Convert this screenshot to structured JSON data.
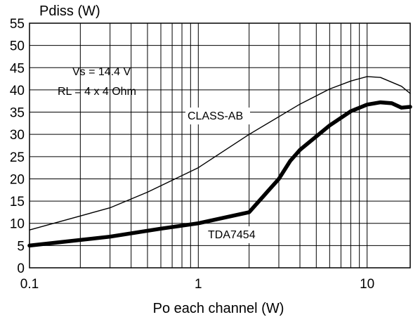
{
  "chart_data": {
    "type": "line",
    "x_scale": "log",
    "xlim": [
      0.1,
      18
    ],
    "ylim": [
      0,
      55
    ],
    "xlabel": "Po each channel (W)",
    "ylabel": "Pdiss (W)",
    "x_ticks": [
      {
        "value": 0.1,
        "label": "0.1"
      },
      {
        "value": 1,
        "label": "1"
      },
      {
        "value": 10,
        "label": "10"
      }
    ],
    "y_ticks": [
      {
        "value": 0,
        "label": "0"
      },
      {
        "value": 5,
        "label": "5"
      },
      {
        "value": 10,
        "label": "10"
      },
      {
        "value": 15,
        "label": "15"
      },
      {
        "value": 20,
        "label": "20"
      },
      {
        "value": 25,
        "label": "25"
      },
      {
        "value": 30,
        "label": "30"
      },
      {
        "value": 35,
        "label": "35"
      },
      {
        "value": 40,
        "label": "40"
      },
      {
        "value": 45,
        "label": "45"
      },
      {
        "value": 50,
        "label": "50"
      },
      {
        "value": 55,
        "label": "55"
      }
    ],
    "grid": true,
    "annotations": [
      "Vs = 14.4 V",
      "RL = 4 x 4 Ohm"
    ],
    "series": [
      {
        "name": "CLASS-AB",
        "line": "thin",
        "x": [
          0.1,
          0.3,
          0.5,
          1,
          2,
          4,
          6,
          8,
          10,
          12,
          16,
          18
        ],
        "y": [
          8.5,
          13.5,
          17,
          22.5,
          30,
          36.8,
          40.2,
          42,
          43,
          42.8,
          40.8,
          39.2
        ]
      },
      {
        "name": "TDA7454",
        "line": "thick",
        "x": [
          0.1,
          0.3,
          0.6,
          1,
          2,
          3,
          3.5,
          4,
          6,
          8,
          10,
          12,
          14,
          16,
          18
        ],
        "y": [
          5,
          7,
          8.8,
          10,
          12.5,
          20,
          24,
          26.5,
          32,
          35.2,
          36.7,
          37.2,
          37,
          36,
          36.2
        ]
      }
    ]
  }
}
